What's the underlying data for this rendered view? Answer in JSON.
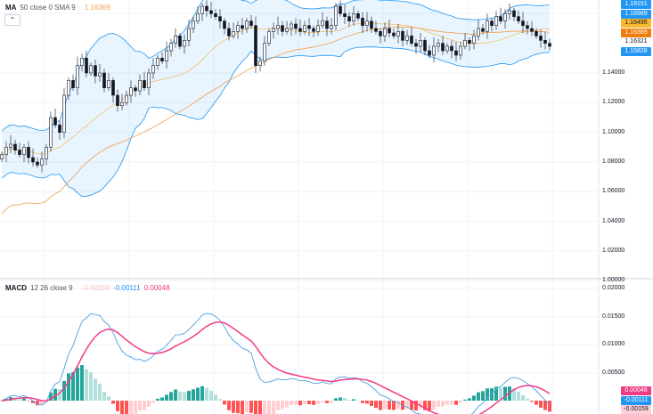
{
  "legend": {
    "ma_label": "MA",
    "ma_params": "50 close 0 SMA 9",
    "ma_value": "1.16369"
  },
  "macd_legend": {
    "label": "MACD",
    "params": "12 26 close 9",
    "hist": "-0.00159",
    "macd": "-0.00111",
    "signal": "0.00048"
  },
  "price_ticks": [
    "1.14000",
    "1.12000",
    "1.10000",
    "1.08000",
    "1.06000",
    "1.04000",
    "1.02000",
    "1.00000"
  ],
  "price_tags": [
    {
      "text": "1.18151",
      "bg": "#2196f3",
      "fg": "#fff"
    },
    {
      "text": "1.16989",
      "bg": "#2196f3",
      "fg": "#fff"
    },
    {
      "text": "1.16495",
      "bg": "#f7b82f",
      "fg": "#131722"
    },
    {
      "text": "1.16369",
      "bg": "#ef7d0b",
      "fg": "#fff"
    },
    {
      "text": "1.16321",
      "bg": "#fff",
      "fg": "#131722"
    },
    {
      "text": "1.15828",
      "bg": "#2196f3",
      "fg": "#fff"
    }
  ],
  "macd_ticks": [
    "0.02000",
    "0.01500",
    "0.01000",
    "0.00500"
  ],
  "macd_tags": [
    {
      "text": "0.00048",
      "bg": "#f23b85",
      "fg": "#fff"
    },
    {
      "text": "-0.00111",
      "bg": "#2196f3",
      "fg": "#fff"
    },
    {
      "text": "-0.00159",
      "bg": "#fdcfd6",
      "fg": "#131722"
    }
  ],
  "colors": {
    "up": "#26a69a",
    "down": "#ef5350",
    "ma": "#f0a04b",
    "band": "#2196f3",
    "macd": "#5aa9e6",
    "signal": "#f23b85"
  },
  "closes": [
    1.085,
    1.09,
    1.092,
    1.088,
    1.085,
    1.09,
    1.083,
    1.08,
    1.078,
    1.082,
    1.09,
    1.11,
    1.105,
    1.1,
    1.125,
    1.135,
    1.13,
    1.145,
    1.15,
    1.14,
    1.145,
    1.138,
    1.14,
    1.13,
    1.135,
    1.125,
    1.118,
    1.12,
    1.125,
    1.13,
    1.128,
    1.135,
    1.13,
    1.14,
    1.145,
    1.15,
    1.148,
    1.155,
    1.16,
    1.165,
    1.158,
    1.162,
    1.17,
    1.175,
    1.18,
    1.185,
    1.182,
    1.18,
    1.178,
    1.175,
    1.17,
    1.165,
    1.168,
    1.172,
    1.17,
    1.175,
    1.172,
    1.145,
    1.148,
    1.16,
    1.168,
    1.17,
    1.172,
    1.168,
    1.17,
    1.173,
    1.17,
    1.168,
    1.172,
    1.17,
    1.168,
    1.172,
    1.175,
    1.17,
    1.172,
    1.185,
    1.18,
    1.178,
    1.175,
    1.18,
    1.177,
    1.172,
    1.175,
    1.17,
    1.168,
    1.165,
    1.17,
    1.167,
    1.165,
    1.168,
    1.162,
    1.165,
    1.16,
    1.158,
    1.162,
    1.155,
    1.152,
    1.158,
    1.16,
    1.155,
    1.158,
    1.155,
    1.152,
    1.158,
    1.162,
    1.16,
    1.165,
    1.17,
    1.168,
    1.175,
    1.172,
    1.178,
    1.175,
    1.18,
    1.182,
    1.178,
    1.175,
    1.172,
    1.17,
    1.168,
    1.165,
    1.162,
    1.16,
    1.158
  ]
}
